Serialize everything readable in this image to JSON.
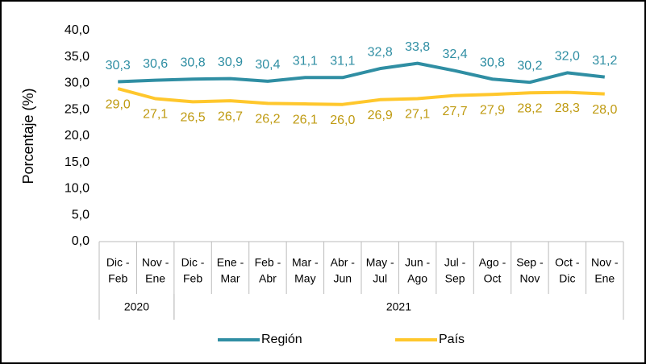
{
  "chart_data": {
    "type": "line",
    "y_label": "Porcentaje (%)",
    "categories": [
      [
        "Dic -",
        "Feb"
      ],
      [
        "Nov -",
        "Ene"
      ],
      [
        "Dic -",
        "Feb"
      ],
      [
        "Ene -",
        "Mar"
      ],
      [
        "Feb -",
        "Abr"
      ],
      [
        "Mar -",
        "May"
      ],
      [
        "Abr -",
        "Jun"
      ],
      [
        "May -",
        "Jul"
      ],
      [
        "Jun -",
        "Ago"
      ],
      [
        "Jul -",
        "Sep"
      ],
      [
        "Ago -",
        "Oct"
      ],
      [
        "Sep -",
        "Nov"
      ],
      [
        "Oct -",
        "Dic"
      ],
      [
        "Nov -",
        "Ene"
      ]
    ],
    "category_groups": [
      {
        "label": "2020",
        "count": 2
      },
      {
        "label": "2021",
        "count": 12
      }
    ],
    "series": [
      {
        "name": "Región",
        "color": "#2f8ea3",
        "label_color": "#2f8ea3",
        "values": [
          30.3,
          30.6,
          30.8,
          30.9,
          30.4,
          31.1,
          31.1,
          32.8,
          33.8,
          32.4,
          30.8,
          30.2,
          32.0,
          31.2
        ],
        "value_labels": [
          "30,3",
          "30,6",
          "30,8",
          "30,9",
          "30,4",
          "31,1",
          "31,1",
          "32,8",
          "33,8",
          "32,4",
          "30,8",
          "30,2",
          "32,0",
          "31,2"
        ]
      },
      {
        "name": "País",
        "color": "#ffc72c",
        "label_color": "#bf9a10",
        "values": [
          29.0,
          27.1,
          26.5,
          26.7,
          26.2,
          26.1,
          26.0,
          26.9,
          27.1,
          27.7,
          27.9,
          28.2,
          28.3,
          28.0
        ],
        "value_labels": [
          "29,0",
          "27,1",
          "26,5",
          "26,7",
          "26,2",
          "26,1",
          "26,0",
          "26,9",
          "27,1",
          "27,7",
          "27,9",
          "28,2",
          "28,3",
          "28,0"
        ]
      }
    ],
    "ylim": [
      0,
      40
    ],
    "yticks": [
      {
        "value": 0,
        "label": "0,0"
      },
      {
        "value": 5,
        "label": "5,0"
      },
      {
        "value": 10,
        "label": "10,0"
      },
      {
        "value": 15,
        "label": "15,0"
      },
      {
        "value": 20,
        "label": "20,0"
      },
      {
        "value": 25,
        "label": "25,0"
      },
      {
        "value": 30,
        "label": "30,0"
      },
      {
        "value": 35,
        "label": "35,0"
      },
      {
        "value": 40,
        "label": "40,0"
      }
    ],
    "grid": false,
    "legend": "bottom"
  }
}
